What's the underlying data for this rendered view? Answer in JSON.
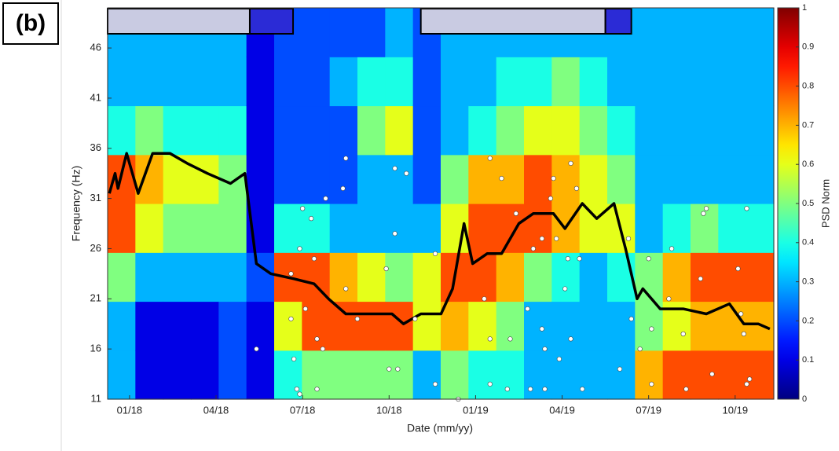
{
  "panel_label": "(b)",
  "chart_data": {
    "type": "heatmap",
    "x_label": "Date (mm/yy)",
    "y_label": "Frequency (Hz)",
    "xlim": [
      -0.76,
      22.34
    ],
    "ylim": [
      11,
      50
    ],
    "xticks": [
      {
        "value": 0,
        "label": "01/18"
      },
      {
        "value": 3,
        "label": "04/18"
      },
      {
        "value": 6,
        "label": "07/18"
      },
      {
        "value": 9,
        "label": "10/18"
      },
      {
        "value": 12,
        "label": "01/19"
      },
      {
        "value": 15,
        "label": "04/19"
      },
      {
        "value": 18,
        "label": "07/19"
      },
      {
        "value": 21,
        "label": "10/19"
      }
    ],
    "yticks": [
      11,
      16,
      21,
      26,
      31,
      36,
      41,
      46
    ],
    "z": [
      [
        0.3,
        0.3,
        0.5,
        0.8,
        0.8,
        0.4,
        0.3,
        0.3
      ],
      [
        0.1,
        0.1,
        0.3,
        0.6,
        0.7,
        0.5,
        0.3,
        0.3
      ],
      [
        0.1,
        0.1,
        0.3,
        0.5,
        0.6,
        0.4,
        0.3,
        0.3
      ],
      [
        0.1,
        0.1,
        0.3,
        0.5,
        0.6,
        0.4,
        0.3,
        0.3
      ],
      [
        0.2,
        0.2,
        0.3,
        0.5,
        0.5,
        0.4,
        0.3,
        0.3
      ],
      [
        0.1,
        0.1,
        0.2,
        0.1,
        0.1,
        0.1,
        0.1,
        0.1
      ],
      [
        0.4,
        0.6,
        0.8,
        0.4,
        0.2,
        0.2,
        0.2,
        0.2
      ],
      [
        0.5,
        0.8,
        0.8,
        0.4,
        0.2,
        0.2,
        0.2,
        0.2
      ],
      [
        0.5,
        0.8,
        0.7,
        0.3,
        0.2,
        0.2,
        0.3,
        0.2
      ],
      [
        0.5,
        0.8,
        0.6,
        0.3,
        0.3,
        0.5,
        0.4,
        0.2
      ],
      [
        0.5,
        0.8,
        0.5,
        0.3,
        0.3,
        0.6,
        0.4,
        0.3
      ],
      [
        0.3,
        0.6,
        0.6,
        0.3,
        0.2,
        0.2,
        0.2,
        0.2
      ],
      [
        0.5,
        0.7,
        0.8,
        0.6,
        0.5,
        0.3,
        0.3,
        0.3
      ],
      [
        0.4,
        0.6,
        0.8,
        0.8,
        0.7,
        0.4,
        0.3,
        0.3
      ],
      [
        0.4,
        0.5,
        0.7,
        0.8,
        0.7,
        0.5,
        0.4,
        0.3
      ],
      [
        0.3,
        0.3,
        0.5,
        0.8,
        0.8,
        0.6,
        0.4,
        0.3
      ],
      [
        0.3,
        0.3,
        0.4,
        0.7,
        0.7,
        0.6,
        0.5,
        0.3
      ],
      [
        0.3,
        0.3,
        0.3,
        0.6,
        0.6,
        0.5,
        0.4,
        0.3
      ],
      [
        0.3,
        0.3,
        0.4,
        0.6,
        0.5,
        0.4,
        0.3,
        0.3
      ],
      [
        0.7,
        0.5,
        0.5,
        0.3,
        0.3,
        0.3,
        0.3,
        0.3
      ],
      [
        0.8,
        0.6,
        0.7,
        0.4,
        0.3,
        0.3,
        0.3,
        0.3
      ],
      [
        0.8,
        0.7,
        0.8,
        0.5,
        0.3,
        0.3,
        0.3,
        0.3
      ],
      [
        0.8,
        0.7,
        0.8,
        0.4,
        0.3,
        0.3,
        0.3,
        0.3
      ],
      [
        0.8,
        0.7,
        0.8,
        0.4,
        0.3,
        0.3,
        0.3,
        0.3
      ]
    ],
    "colorbar": {
      "label": "PSD Norm",
      "lim": [
        0,
        1
      ],
      "ticks": [
        0,
        0.1,
        0.2,
        0.3,
        0.4,
        0.5,
        0.6,
        0.7,
        0.8,
        0.9,
        1
      ]
    },
    "periods": [
      {
        "start": -0.76,
        "end": 4.17,
        "color": "#c9cbe2"
      },
      {
        "start": 4.17,
        "end": 5.67,
        "color": "#2b2bd6"
      },
      {
        "start": 10.1,
        "end": 16.5,
        "color": "#c9cbe2"
      },
      {
        "start": 16.5,
        "end": 17.4,
        "color": "#2b2bd6"
      }
    ],
    "line": {
      "color": "#000000",
      "x": [
        -0.7,
        -0.5,
        -0.4,
        -0.1,
        0.3,
        0.8,
        1.4,
        2.0,
        2.7,
        3.5,
        4.0,
        4.4,
        4.9,
        5.7,
        6.4,
        6.9,
        7.5,
        8.3,
        9.1,
        9.5,
        10.1,
        10.8,
        11.2,
        11.6,
        11.9,
        12.4,
        12.9,
        13.5,
        14.0,
        14.7,
        15.1,
        15.7,
        16.2,
        16.8,
        17.2,
        17.6,
        17.8,
        18.4,
        19.2,
        20.0,
        20.8,
        21.3,
        21.8,
        22.2
      ],
      "y": [
        31.5,
        33.5,
        32,
        35.5,
        31.5,
        35.5,
        35.5,
        34.5,
        33.5,
        32.5,
        33.5,
        24.5,
        23.5,
        23,
        22.5,
        21,
        19.5,
        19.5,
        19.5,
        18.5,
        19.5,
        19.5,
        22,
        28.5,
        24.5,
        25.5,
        25.5,
        28.5,
        29.5,
        29.5,
        28,
        30.5,
        29,
        30.5,
        26,
        21,
        22,
        20,
        20,
        19.5,
        20.5,
        18.5,
        18.5,
        18
      ]
    },
    "points": {
      "color": "#ffffff",
      "x": [
        4.4,
        5.6,
        5.6,
        5.7,
        5.8,
        5.9,
        5.9,
        6.0,
        6.1,
        6.3,
        6.4,
        6.5,
        6.5,
        6.7,
        6.8,
        7.5,
        7.5,
        7.4,
        7.9,
        8.9,
        9.0,
        9.2,
        9.2,
        9.3,
        9.6,
        9.9,
        10.6,
        10.6,
        11.4,
        12.3,
        12.5,
        12.5,
        12.5,
        12.9,
        13.1,
        13.2,
        13.4,
        13.8,
        13.9,
        14.0,
        14.3,
        14.3,
        14.4,
        14.4,
        14.6,
        14.7,
        14.8,
        14.9,
        15.1,
        15.2,
        15.3,
        15.3,
        15.5,
        15.6,
        15.7,
        17.3,
        17.4,
        17.0,
        17.7,
        18.0,
        18.1,
        18.1,
        18.7,
        18.8,
        19.2,
        19.3,
        19.8,
        19.9,
        20.0,
        20.2,
        21.1,
        21.2,
        21.4,
        21.3,
        21.4,
        21.5
      ],
      "y": [
        16,
        23.5,
        19,
        15,
        12,
        11.5,
        26,
        30,
        20,
        29,
        25,
        12,
        17,
        16,
        31,
        22,
        35,
        32,
        19,
        24,
        14,
        34,
        27.5,
        14,
        33.5,
        19,
        25.5,
        12.5,
        11,
        21,
        17,
        35,
        12.5,
        33,
        12,
        17,
        29.5,
        20,
        12,
        26,
        18,
        27,
        16,
        12,
        31,
        33,
        27,
        15,
        22,
        25,
        34.5,
        17,
        32,
        25,
        12,
        27,
        19,
        14,
        16,
        25,
        18,
        12.5,
        21,
        26,
        17.5,
        12,
        23,
        29.5,
        30,
        13.5,
        24,
        19.5,
        30,
        17.5,
        12.5,
        13
      ]
    }
  }
}
